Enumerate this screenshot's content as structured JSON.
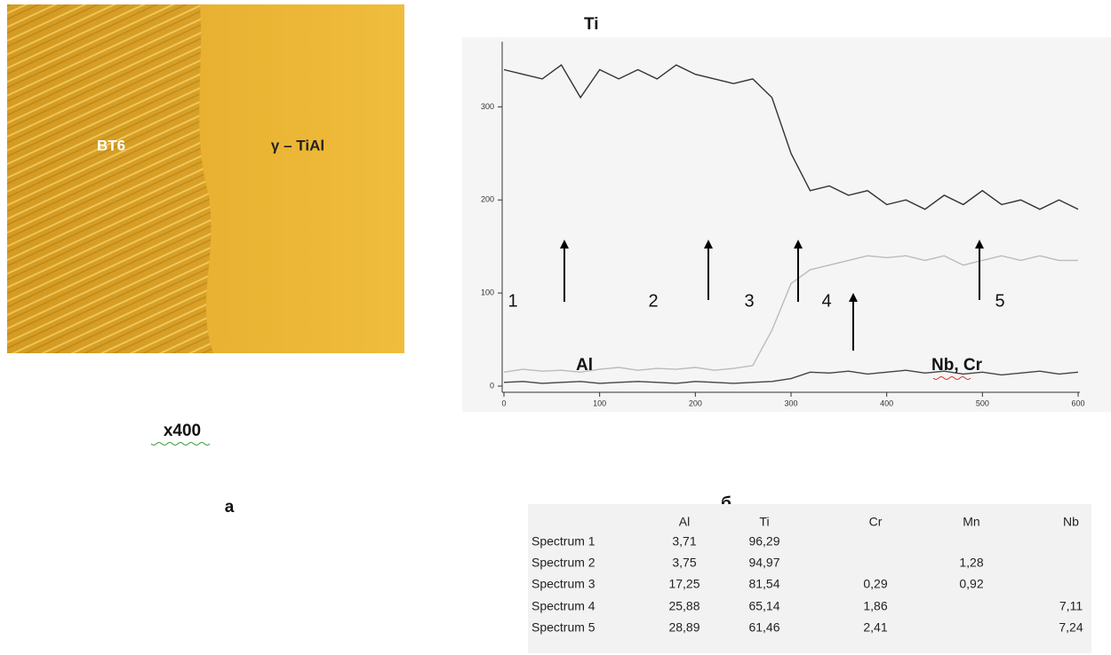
{
  "micrograph": {
    "labels": [
      "BT6",
      "γ – TiAl"
    ],
    "magnification": "x400",
    "caption": "а"
  },
  "chart_caption": "б",
  "chart_data": {
    "type": "line",
    "x": [
      0,
      20,
      40,
      60,
      80,
      100,
      120,
      140,
      160,
      180,
      200,
      220,
      240,
      260,
      280,
      300,
      320,
      340,
      360,
      380,
      400,
      420,
      440,
      460,
      480,
      500,
      520,
      540,
      560,
      580,
      600
    ],
    "series": [
      {
        "name": "Ti",
        "color": "#333333",
        "values": [
          340,
          335,
          330,
          345,
          310,
          340,
          330,
          340,
          330,
          345,
          335,
          330,
          325,
          330,
          310,
          250,
          210,
          215,
          205,
          210,
          195,
          200,
          190,
          205,
          195,
          210,
          195,
          200,
          190,
          200,
          190
        ]
      },
      {
        "name": "Al",
        "color": "#bbbbbb",
        "values": [
          15,
          18,
          16,
          17,
          15,
          18,
          20,
          17,
          19,
          18,
          20,
          17,
          19,
          22,
          60,
          110,
          125,
          130,
          135,
          140,
          138,
          140,
          135,
          140,
          130,
          135,
          140,
          135,
          140,
          135,
          135
        ]
      },
      {
        "name": "Nb, Cr",
        "color": "#444444",
        "values": [
          4,
          5,
          3,
          4,
          5,
          3,
          4,
          5,
          4,
          3,
          5,
          4,
          3,
          4,
          5,
          8,
          15,
          14,
          16,
          13,
          15,
          17,
          14,
          16,
          13,
          15,
          12,
          14,
          16,
          13,
          15
        ]
      }
    ],
    "xlim": [
      0,
      600
    ],
    "xticks": [
      0,
      100,
      200,
      300,
      400,
      500,
      600
    ],
    "ylim": [
      0,
      370
    ],
    "yticks": [
      0,
      100,
      200,
      300
    ],
    "annotations": [
      "1",
      "2",
      "3",
      "4",
      "5"
    ]
  },
  "table": {
    "columns": [
      "Al",
      "Ti",
      "Cr",
      "Mn",
      "Nb"
    ],
    "rows": [
      {
        "label": "Spectrum 1",
        "cells": [
          "3,71",
          "96,29",
          null,
          null,
          null
        ]
      },
      {
        "label": "Spectrum 2",
        "cells": [
          "3,75",
          "94,97",
          null,
          "1,28",
          null
        ]
      },
      {
        "label": "Spectrum 3",
        "cells": [
          "17,25",
          "81,54",
          "0,29",
          "0,92",
          null
        ]
      },
      {
        "label": "Spectrum 4",
        "cells": [
          "25,88",
          "65,14",
          "1,86",
          null,
          "7,11"
        ]
      },
      {
        "label": "Spectrum 5",
        "cells": [
          "28,89",
          "61,46",
          "2,41",
          null,
          "7,24"
        ]
      }
    ]
  }
}
